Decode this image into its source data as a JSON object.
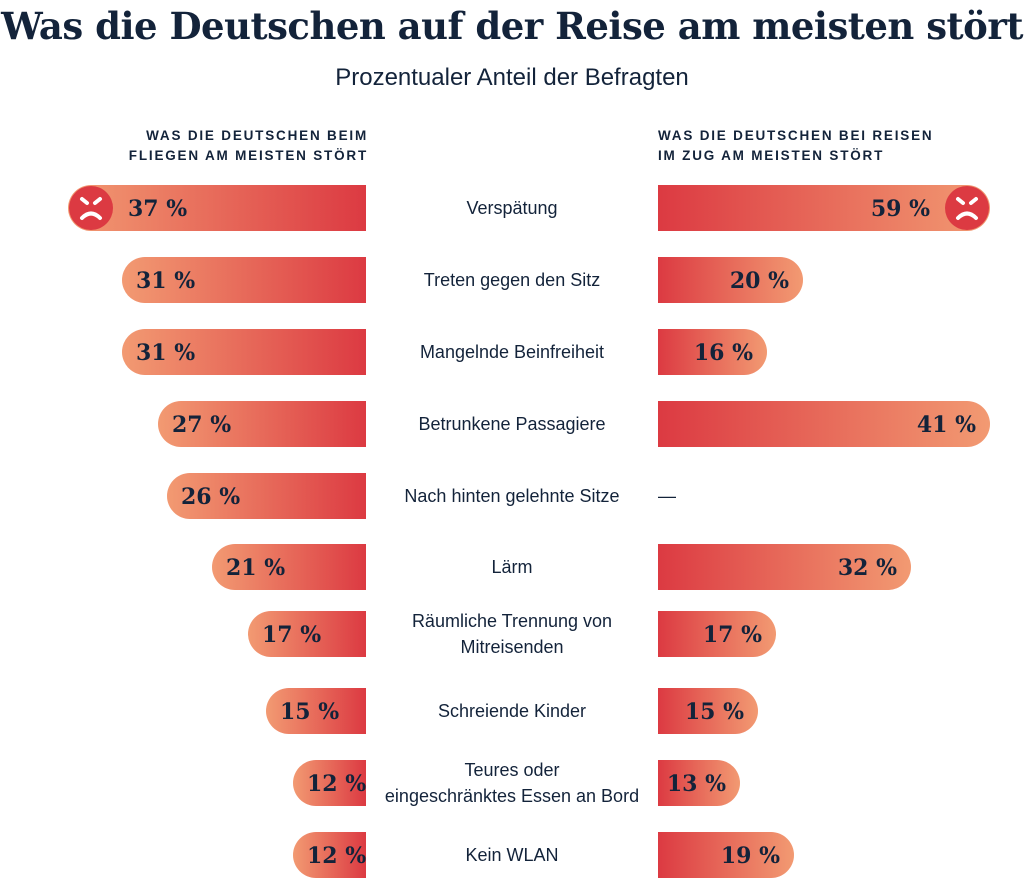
{
  "chart_data": {
    "type": "bar",
    "title": "Was die Deutschen auf der Reise am meisten stört",
    "subtitle": "Prozentualer Anteil der Befragten",
    "categories": [
      "Verspätung",
      "Treten gegen den Sitz",
      "Mangelnde Beinfreiheit",
      "Betrunkene Passagiere",
      "Nach hinten gelehnte Sitze",
      "Lärm",
      "Räumliche Trennung von Mitreisenden",
      "Schreiende Kinder",
      "Teures oder eingeschränktes Essen an Bord",
      "Kein WLAN"
    ],
    "series": [
      {
        "name": "WAS DIE DEUTSCHEN BEIM FLIEGEN AM MEISTEN STÖRT",
        "values": [
          37,
          31,
          31,
          27,
          26,
          21,
          17,
          15,
          12,
          12
        ]
      },
      {
        "name": "WAS DIE DEUTSCHEN BEI REISEN IM ZUG AM MEISTEN STÖRT",
        "values": [
          59,
          20,
          16,
          41,
          null,
          32,
          17,
          15,
          13,
          19
        ]
      }
    ],
    "value_suffix": " %",
    "missing_label": "—",
    "highlight_icon": "angry-face-icon",
    "colors": {
      "gradient_light": "#f29a72",
      "gradient_dark": "#dc3a42",
      "icon": "#dc3a42",
      "text": "#13233a"
    }
  },
  "headers": {
    "left": [
      "WAS DIE DEUTSCHEN BEIM",
      "FLIEGEN AM MEISTEN STÖRT"
    ],
    "right": [
      "WAS DIE DEUTSCHEN BEI REISEN",
      "IM ZUG AM MEISTEN STÖRT"
    ]
  }
}
